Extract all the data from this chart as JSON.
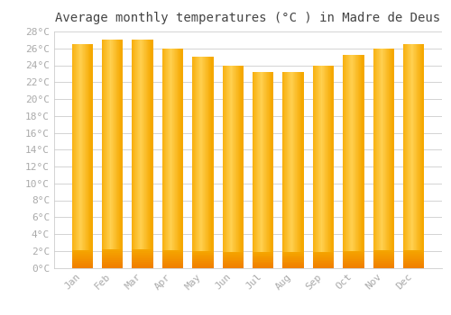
{
  "title": "Average monthly temperatures (°C ) in Madre de Deus",
  "months": [
    "Jan",
    "Feb",
    "Mar",
    "Apr",
    "May",
    "Jun",
    "Jul",
    "Aug",
    "Sep",
    "Oct",
    "Nov",
    "Dec"
  ],
  "temperatures": [
    26.5,
    27.0,
    27.0,
    26.0,
    25.0,
    24.0,
    23.2,
    23.2,
    24.0,
    25.2,
    26.0,
    26.5
  ],
  "bar_color_outer": "#F5A800",
  "bar_color_inner": "#FFD050",
  "bar_color_bottom": "#F08000",
  "ylim": [
    0,
    28
  ],
  "ytick_step": 2,
  "background_color": "#FFFFFF",
  "grid_color": "#CCCCCC",
  "title_fontsize": 10,
  "tick_fontsize": 8,
  "title_font": "monospace",
  "tick_font": "monospace",
  "tick_color": "#AAAAAA",
  "title_color": "#444444"
}
